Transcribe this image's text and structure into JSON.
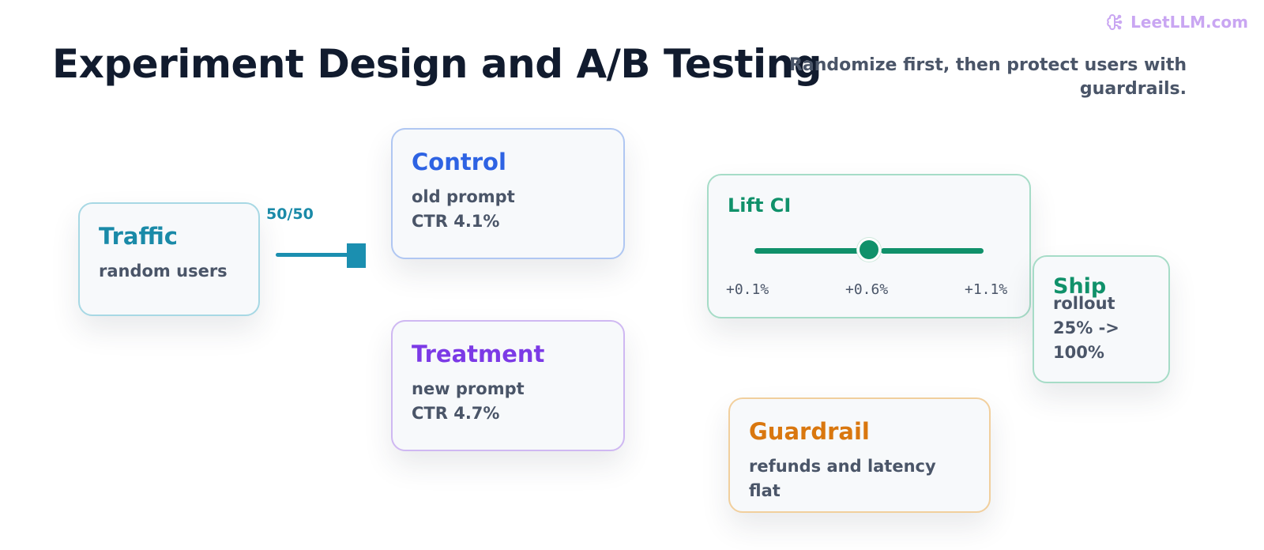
{
  "brand": {
    "name": "LeetLLM.com",
    "icon": "brain-icon"
  },
  "title": "Experiment Design and A/B Testing",
  "subtitle": "Randomize first, then protect users with guardrails.",
  "split": {
    "label": "50/50"
  },
  "traffic": {
    "title": "Traffic",
    "lines": [
      "random users"
    ]
  },
  "control": {
    "title": "Control",
    "lines": [
      "old prompt",
      "CTR 4.1%"
    ]
  },
  "treatment": {
    "title": "Treatment",
    "lines": [
      "new prompt",
      "CTR 4.7%"
    ]
  },
  "lift": {
    "title": "Lift CI",
    "low": "+0.1%",
    "mid": "+0.6%",
    "high": "+1.1%"
  },
  "ship": {
    "title": "Ship",
    "lines": [
      "rollout",
      "25% ->",
      "100%"
    ]
  },
  "guardrail": {
    "title": "Guardrail",
    "lines": [
      "refunds and latency flat"
    ]
  },
  "colors": {
    "traffic": "#1a8aa8",
    "control": "#2e63e3",
    "treatment": "#7c3ae6",
    "lift": "#10916a",
    "guardrail": "#d9770f",
    "brand": "#c9a6f2"
  }
}
